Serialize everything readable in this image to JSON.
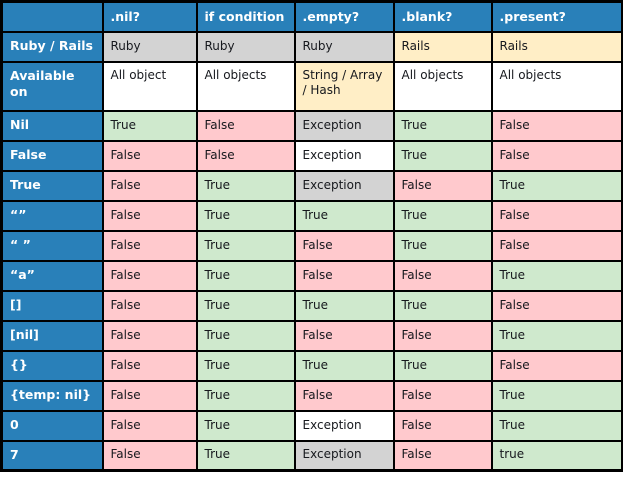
{
  "colors": {
    "header_blue": "#2980b9",
    "pink": "#ffc9cd",
    "green": "#cfe9cd",
    "gray": "#d3d3d3",
    "yellow": "#ffeec6",
    "white": "#ffffff",
    "border": "#000000",
    "header_text": "#ffffff",
    "cell_text": "#16181d"
  },
  "chart_data": {
    "type": "table",
    "columns": [
      "",
      ".nil?",
      "if condition",
      ".empty?",
      ".blank?",
      ".present?"
    ],
    "rows": [
      {
        "label": "Ruby / Rails",
        "cells": [
          {
            "text": "Ruby",
            "bg": "gray"
          },
          {
            "text": "Ruby",
            "bg": "gray"
          },
          {
            "text": "Ruby",
            "bg": "gray"
          },
          {
            "text": "Rails",
            "bg": "yellow"
          },
          {
            "text": "Rails",
            "bg": "yellow"
          }
        ]
      },
      {
        "label": "Available on",
        "cells": [
          {
            "text": "All object",
            "bg": "white"
          },
          {
            "text": "All objects",
            "bg": "white"
          },
          {
            "text": "String / Array / Hash",
            "bg": "yellow"
          },
          {
            "text": "All objects",
            "bg": "white"
          },
          {
            "text": "All objects",
            "bg": "white"
          }
        ]
      },
      {
        "label": "Nil",
        "cells": [
          {
            "text": "True",
            "bg": "green"
          },
          {
            "text": "False",
            "bg": "pink"
          },
          {
            "text": "Exception",
            "bg": "gray"
          },
          {
            "text": "True",
            "bg": "green"
          },
          {
            "text": "False",
            "bg": "pink"
          }
        ]
      },
      {
        "label": "False",
        "cells": [
          {
            "text": "False",
            "bg": "pink"
          },
          {
            "text": "False",
            "bg": "pink"
          },
          {
            "text": "Exception",
            "bg": "white"
          },
          {
            "text": "True",
            "bg": "green"
          },
          {
            "text": "False",
            "bg": "pink"
          }
        ]
      },
      {
        "label": "True",
        "cells": [
          {
            "text": "False",
            "bg": "pink"
          },
          {
            "text": "True",
            "bg": "green"
          },
          {
            "text": "Exception",
            "bg": "gray"
          },
          {
            "text": "False",
            "bg": "pink"
          },
          {
            "text": "True",
            "bg": "green"
          }
        ]
      },
      {
        "label": "“”",
        "cells": [
          {
            "text": "False",
            "bg": "pink"
          },
          {
            "text": "True",
            "bg": "green"
          },
          {
            "text": "True",
            "bg": "green"
          },
          {
            "text": "True",
            "bg": "green"
          },
          {
            "text": "False",
            "bg": "pink"
          }
        ]
      },
      {
        "label": "“ ”",
        "cells": [
          {
            "text": "False",
            "bg": "pink"
          },
          {
            "text": "True",
            "bg": "green"
          },
          {
            "text": "False",
            "bg": "pink"
          },
          {
            "text": "True",
            "bg": "green"
          },
          {
            "text": "False",
            "bg": "pink"
          }
        ]
      },
      {
        "label": "“a”",
        "cells": [
          {
            "text": "False",
            "bg": "pink"
          },
          {
            "text": "True",
            "bg": "green"
          },
          {
            "text": "False",
            "bg": "pink"
          },
          {
            "text": "False",
            "bg": "pink"
          },
          {
            "text": "True",
            "bg": "green"
          }
        ]
      },
      {
        "label": "[]",
        "cells": [
          {
            "text": "False",
            "bg": "pink"
          },
          {
            "text": "True",
            "bg": "green"
          },
          {
            "text": "True",
            "bg": "green"
          },
          {
            "text": "True",
            "bg": "green"
          },
          {
            "text": "False",
            "bg": "pink"
          }
        ]
      },
      {
        "label": "[nil]",
        "cells": [
          {
            "text": "False",
            "bg": "pink"
          },
          {
            "text": "True",
            "bg": "green"
          },
          {
            "text": "False",
            "bg": "pink"
          },
          {
            "text": "False",
            "bg": "pink"
          },
          {
            "text": "True",
            "bg": "green"
          }
        ]
      },
      {
        "label": "{}",
        "cells": [
          {
            "text": "False",
            "bg": "pink"
          },
          {
            "text": "True",
            "bg": "green"
          },
          {
            "text": "True",
            "bg": "green"
          },
          {
            "text": "True",
            "bg": "green"
          },
          {
            "text": "False",
            "bg": "pink"
          }
        ]
      },
      {
        "label": "{temp: nil}",
        "cells": [
          {
            "text": "False",
            "bg": "pink"
          },
          {
            "text": "True",
            "bg": "green"
          },
          {
            "text": "False",
            "bg": "pink"
          },
          {
            "text": "False",
            "bg": "pink"
          },
          {
            "text": "True",
            "bg": "green"
          }
        ]
      },
      {
        "label": "0",
        "cells": [
          {
            "text": "False",
            "bg": "pink"
          },
          {
            "text": "True",
            "bg": "green"
          },
          {
            "text": "Exception",
            "bg": "white"
          },
          {
            "text": "False",
            "bg": "pink"
          },
          {
            "text": "True",
            "bg": "green"
          }
        ]
      },
      {
        "label": "7",
        "cells": [
          {
            "text": "False",
            "bg": "pink"
          },
          {
            "text": "True",
            "bg": "green"
          },
          {
            "text": "Exception",
            "bg": "gray"
          },
          {
            "text": "False",
            "bg": "pink"
          },
          {
            "text": "true",
            "bg": "green"
          }
        ]
      }
    ]
  }
}
